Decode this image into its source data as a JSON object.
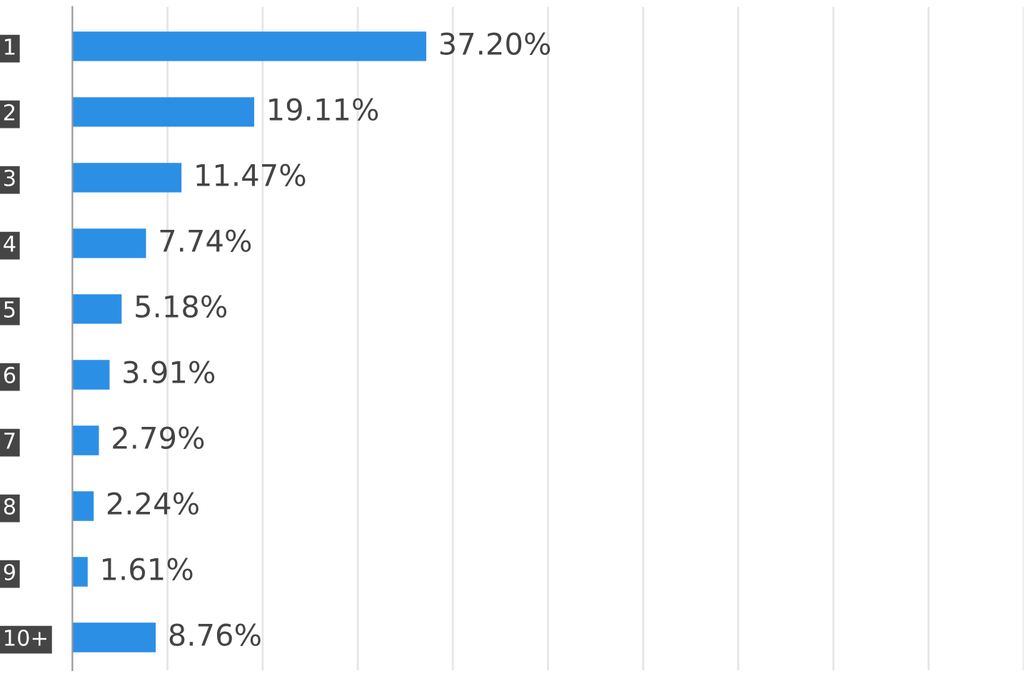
{
  "chart_data": {
    "type": "bar",
    "orientation": "horizontal",
    "categories": [
      "1",
      "2",
      "3",
      "4",
      "5",
      "6",
      "7",
      "8",
      "9",
      "10+"
    ],
    "values": [
      37.2,
      19.11,
      11.47,
      7.74,
      5.18,
      3.91,
      2.79,
      2.24,
      1.61,
      8.76
    ],
    "value_labels": [
      "37.20%",
      "19.11%",
      "11.47%",
      "7.74%",
      "5.18%",
      "3.91%",
      "2.79%",
      "2.24%",
      "1.61%",
      "8.76%"
    ],
    "color": "#2b8fe6",
    "xticks": [
      {
        "value": 10,
        "label": null
      },
      {
        "value": 20,
        "label": null
      },
      {
        "value": 30,
        "label": null
      },
      {
        "value": 40,
        "label": null
      },
      {
        "value": 50,
        "label": null
      },
      {
        "value": 60,
        "label": null
      },
      {
        "value": 70,
        "label": null
      },
      {
        "value": 80,
        "label": null
      },
      {
        "value": 90,
        "label": null
      },
      {
        "value": 100,
        "label": null
      }
    ],
    "grid": "x"
  }
}
